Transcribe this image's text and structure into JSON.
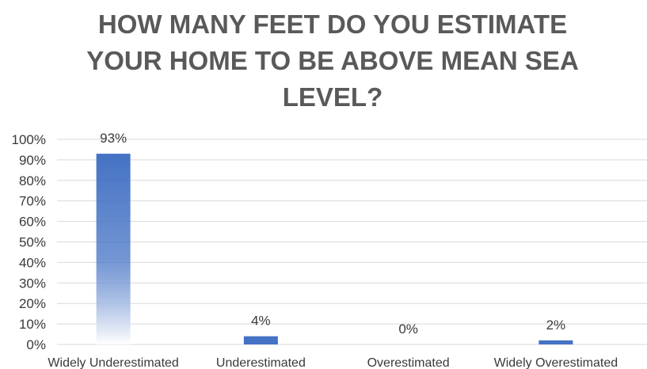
{
  "chart_data": {
    "type": "bar",
    "title_lines": [
      "HOW MANY FEET DO YOU ESTIMATE",
      "YOUR HOME TO BE ABOVE MEAN SEA",
      "LEVEL?"
    ],
    "categories": [
      "Widely Underestimated",
      "Underestimated",
      "Overestimated",
      "Widely Overestimated"
    ],
    "values": [
      93,
      4,
      0,
      2
    ],
    "data_labels": [
      "93%",
      "4%",
      "0%",
      "2%"
    ],
    "yticks": [
      "0%",
      "10%",
      "20%",
      "30%",
      "40%",
      "50%",
      "60%",
      "70%",
      "80%",
      "90%",
      "100%"
    ],
    "ylim": [
      0,
      100
    ],
    "xlabel": "",
    "ylabel": "",
    "grid": true,
    "legend": "none",
    "colors": {
      "bar": "#4472c4",
      "bar_fade": "#ffffff",
      "grid": "#d9d9d9",
      "text": "#3a3a3a",
      "title": "#595959"
    }
  }
}
